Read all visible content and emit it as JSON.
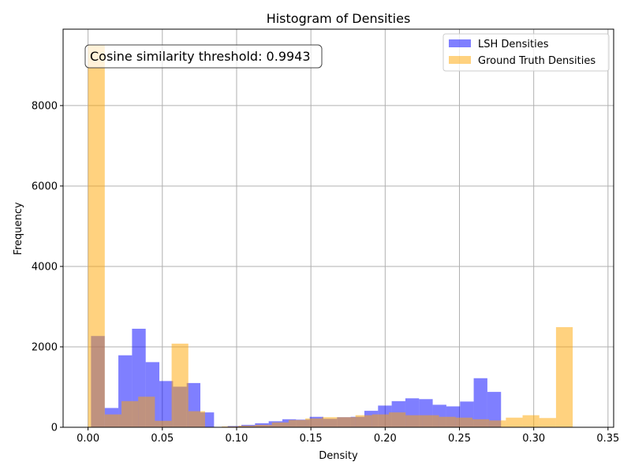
{
  "chart_data": {
    "type": "bar",
    "title": "Histogram of Densities",
    "xlabel": "Density",
    "ylabel": "Frequency",
    "xlim": [
      -0.0168,
      0.3538
    ],
    "ylim": [
      0,
      9900
    ],
    "xticks": [
      0.0,
      0.05,
      0.1,
      0.15,
      0.2,
      0.25,
      0.3,
      0.35
    ],
    "xtick_labels": [
      "0.00",
      "0.05",
      "0.10",
      "0.15",
      "0.20",
      "0.25",
      "0.30",
      "0.35"
    ],
    "yticks": [
      0,
      2000,
      4000,
      6000,
      8000
    ],
    "ytick_labels": [
      "0",
      "2000",
      "4000",
      "6000",
      "8000"
    ],
    "grid": true,
    "legend_position": "top-right",
    "annotation": "Cosine similarity threshold: 0.9943",
    "series": [
      {
        "name": "LSH Densities",
        "color": "#0000ff",
        "alpha": 0.5,
        "bin_start": 0.002,
        "bin_width": 0.0092,
        "values": [
          2270,
          480,
          1790,
          2450,
          1620,
          1150,
          1010,
          1100,
          370,
          0,
          30,
          60,
          100,
          150,
          200,
          190,
          260,
          210,
          250,
          260,
          410,
          540,
          650,
          720,
          700,
          560,
          520,
          640,
          1220,
          880
        ]
      },
      {
        "name": "Ground Truth Densities",
        "color": "#ffa500",
        "alpha": 0.5,
        "bin_start": 0.0,
        "bin_width": 0.01125,
        "values": [
          9500,
          320,
          650,
          760,
          160,
          2080,
          400,
          0,
          20,
          40,
          60,
          120,
          180,
          220,
          250,
          250,
          300,
          320,
          370,
          300,
          300,
          260,
          240,
          200,
          170,
          240,
          300,
          230,
          2490,
          0
        ]
      }
    ]
  }
}
